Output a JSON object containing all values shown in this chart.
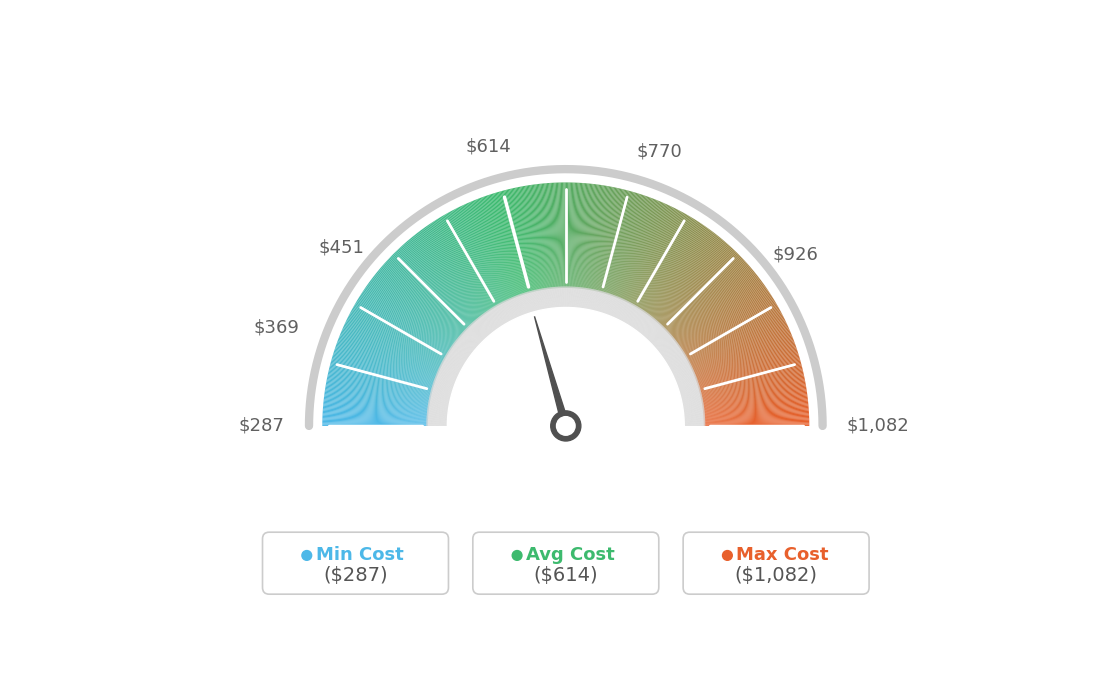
{
  "min_val": 287,
  "max_val": 1082,
  "avg_val": 614,
  "label_values": [
    287,
    369,
    451,
    614,
    770,
    926,
    1082
  ],
  "label_texts": [
    "$287",
    "$369",
    "$451",
    "$614",
    "$770",
    "$926",
    "$1,082"
  ],
  "legend": [
    {
      "label": "Min Cost",
      "value": "($287)",
      "color": "#4db8e8"
    },
    {
      "label": "Avg Cost",
      "value": "($614)",
      "color": "#3dba6e"
    },
    {
      "label": "Max Cost",
      "value": "($1,082)",
      "color": "#e8602c"
    }
  ],
  "needle_value": 614,
  "bg_color": "#ffffff",
  "label_color": "#606060",
  "needle_color": "#505050",
  "color_stops": [
    [
      287,
      [
        0.302,
        0.722,
        0.91
      ]
    ],
    [
      614,
      [
        0.239,
        0.729,
        0.431
      ]
    ],
    [
      1082,
      [
        0.91,
        0.376,
        0.173
      ]
    ]
  ],
  "n_ticks": 13,
  "outer_r": 1.1,
  "inner_r": 0.62,
  "gap_r": 0.58,
  "ring_outer_r": 1.16,
  "ring_inner_r": 0.56
}
